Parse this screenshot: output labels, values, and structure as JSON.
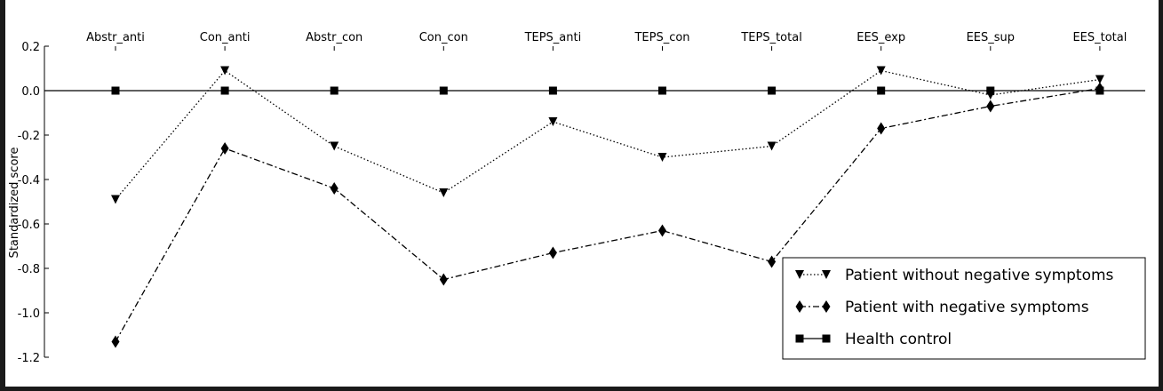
{
  "chart_data": {
    "type": "line",
    "categories": [
      "Abstr_anti",
      "Con_anti",
      "Abstr_con",
      "Con_con",
      "TEPS_anti",
      "TEPS_con",
      "TEPS_total",
      "EES_exp",
      "EES_sup",
      "EES_total"
    ],
    "ylabel": "Standardized score",
    "xlabel": "",
    "ylim": [
      -1.2,
      0.2
    ],
    "yticks": [
      "0.2",
      "0.0",
      "-0.2",
      "-0.4",
      "-0.6",
      "-0.8",
      "-1.0",
      "-1.2"
    ],
    "x_axis_position": "top",
    "grid": false,
    "legend_position": "bottom-right",
    "series": [
      {
        "name": "Patient without negative symptoms",
        "values": [
          -0.49,
          0.09,
          -0.25,
          -0.46,
          -0.14,
          -0.3,
          -0.25,
          0.09,
          -0.02,
          0.05
        ],
        "marker": "triangle-down",
        "line_style": "dotted",
        "color": "#000000"
      },
      {
        "name": "Patient with negative symptoms",
        "values": [
          -1.13,
          -0.26,
          -0.44,
          -0.85,
          -0.73,
          -0.63,
          -0.77,
          -0.17,
          -0.07,
          0.01
        ],
        "marker": "diamond",
        "line_style": "dash-dot",
        "color": "#000000"
      },
      {
        "name": "Health control",
        "values": [
          0,
          0,
          0,
          0,
          0,
          0,
          0,
          0,
          0,
          0
        ],
        "marker": "square",
        "line_style": "solid",
        "color": "#000000"
      }
    ]
  }
}
